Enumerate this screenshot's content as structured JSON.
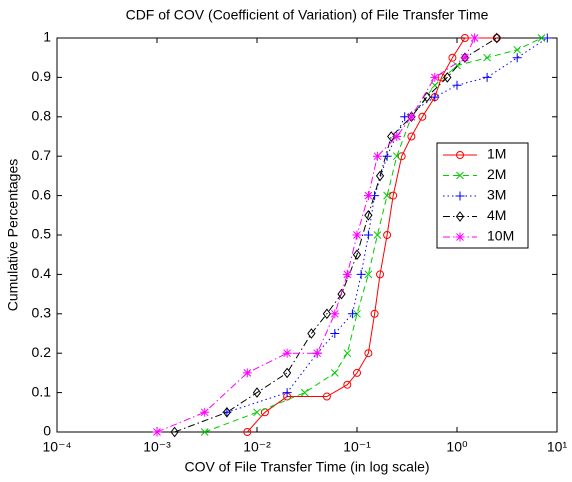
{
  "chart_data": {
    "type": "line",
    "title": "CDF of COV (Coefficient of Variation) of File Transfer Time",
    "x_label": "COV of File Transfer Time (in log scale)",
    "y_label": "Cumulative Percentages",
    "xscale": "log",
    "xlim": [
      0.0001,
      10
    ],
    "xticks": [
      {
        "value": 0.0001,
        "label": "10⁻⁴"
      },
      {
        "value": 0.001,
        "label": "10⁻³"
      },
      {
        "value": 0.01,
        "label": "10⁻²"
      },
      {
        "value": 0.1,
        "label": "10⁻¹"
      },
      {
        "value": 1,
        "label": "10⁰"
      },
      {
        "value": 10,
        "label": "10¹"
      }
    ],
    "ylim": [
      0,
      1
    ],
    "yticks": [
      0,
      0.1,
      0.2,
      0.3,
      0.4,
      0.5,
      0.6,
      0.7,
      0.8,
      0.9,
      1
    ],
    "legend": "right",
    "series": [
      {
        "name": "1M",
        "color": "#ff0000",
        "marker": "circle",
        "dash": "solid",
        "x": [
          0.008,
          0.012,
          0.02,
          0.05,
          0.08,
          0.1,
          0.13,
          0.15,
          0.17,
          0.2,
          0.23,
          0.28,
          0.35,
          0.45,
          0.6,
          0.7,
          0.9,
          1.2,
          2.5
        ],
        "values": [
          0,
          0.05,
          0.09,
          0.09,
          0.12,
          0.15,
          0.2,
          0.3,
          0.4,
          0.5,
          0.6,
          0.7,
          0.75,
          0.8,
          0.85,
          0.9,
          0.95,
          1.0,
          1.0
        ]
      },
      {
        "name": "2M",
        "color": "#00cc00",
        "marker": "x",
        "dash": "dashed",
        "x": [
          0.003,
          0.01,
          0.03,
          0.06,
          0.08,
          0.1,
          0.13,
          0.16,
          0.2,
          0.25,
          0.35,
          0.6,
          1.0,
          2,
          4,
          7
        ],
        "values": [
          0,
          0.05,
          0.1,
          0.15,
          0.2,
          0.3,
          0.4,
          0.5,
          0.6,
          0.7,
          0.8,
          0.88,
          0.93,
          0.95,
          0.97,
          1.0
        ]
      },
      {
        "name": "3M",
        "color": "#0000ff",
        "marker": "plus",
        "dash": "dotted",
        "x": [
          0.005,
          0.02,
          0.04,
          0.06,
          0.09,
          0.11,
          0.13,
          0.15,
          0.2,
          0.3,
          0.6,
          1,
          2,
          4,
          8
        ],
        "values": [
          0.05,
          0.1,
          0.2,
          0.25,
          0.3,
          0.4,
          0.5,
          0.6,
          0.7,
          0.8,
          0.85,
          0.88,
          0.9,
          0.95,
          1.0
        ]
      },
      {
        "name": "4M",
        "color": "#000000",
        "marker": "diamond",
        "dash": "dashdot",
        "x": [
          0.0015,
          0.005,
          0.01,
          0.02,
          0.035,
          0.05,
          0.07,
          0.1,
          0.13,
          0.17,
          0.22,
          0.35,
          0.5,
          0.8,
          1.2,
          2.5
        ],
        "values": [
          0,
          0.05,
          0.1,
          0.15,
          0.25,
          0.3,
          0.35,
          0.45,
          0.55,
          0.65,
          0.75,
          0.8,
          0.85,
          0.9,
          0.95,
          1.0
        ]
      },
      {
        "name": "10M",
        "color": "#ff00ff",
        "marker": "star",
        "dash": "dashdot",
        "x": [
          0.001,
          0.003,
          0.008,
          0.02,
          0.04,
          0.06,
          0.08,
          0.1,
          0.13,
          0.16,
          0.25,
          0.35,
          0.6,
          1.2,
          1.5
        ],
        "values": [
          0,
          0.05,
          0.15,
          0.2,
          0.2,
          0.3,
          0.4,
          0.5,
          0.6,
          0.7,
          0.75,
          0.8,
          0.9,
          0.95,
          1.0
        ]
      }
    ]
  }
}
